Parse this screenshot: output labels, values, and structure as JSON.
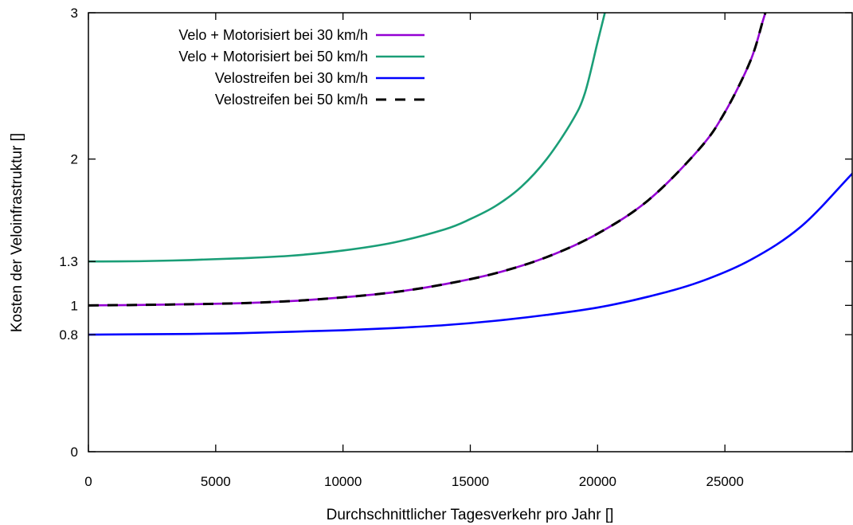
{
  "chart_data": {
    "type": "line",
    "title": "",
    "xlabel": "Durchschnittlicher Tagesverkehr pro Jahr []",
    "ylabel": "Kosten der Veloinfrastruktur []",
    "xlim": [
      0,
      30000
    ],
    "ylim": [
      0,
      3
    ],
    "x_ticks": [
      0,
      5000,
      10000,
      15000,
      20000,
      25000
    ],
    "x_tick_labels": [
      "0",
      "5000",
      "10000",
      "15000",
      "20000",
      "25000"
    ],
    "y_ticks": [
      0,
      0.8,
      1,
      1.3,
      2,
      3
    ],
    "y_tick_labels": [
      "0",
      "0.8",
      "1",
      "1.3",
      "2",
      "3"
    ],
    "grid": false,
    "legend_position": "top-left",
    "series": [
      {
        "name": "Velo + Motorisiert bei 30 km/h",
        "color": "#9400d3",
        "dash": "solid",
        "x": [
          0,
          2000,
          4000,
          6000,
          8000,
          10000,
          12000,
          14000,
          16000,
          18000,
          20000,
          22000,
          24000,
          25000,
          26000,
          26500
        ],
        "y": [
          1.0,
          1.003,
          1.008,
          1.015,
          1.03,
          1.055,
          1.09,
          1.145,
          1.22,
          1.33,
          1.49,
          1.72,
          2.07,
          2.32,
          2.67,
          2.95
        ]
      },
      {
        "name": "Velo + Motorisiert bei 50 km/h",
        "color": "#1a9e77",
        "dash": "solid",
        "x": [
          0,
          2000,
          4000,
          6000,
          8000,
          10000,
          12000,
          14000,
          15000,
          16000,
          17000,
          18000,
          19000,
          19500,
          20000
        ],
        "y": [
          1.3,
          1.302,
          1.31,
          1.322,
          1.34,
          1.375,
          1.43,
          1.52,
          1.59,
          1.68,
          1.81,
          2.0,
          2.26,
          2.45,
          2.8
        ]
      },
      {
        "name": "Velostreifen bei 30 km/h",
        "color": "#0000ff",
        "dash": "solid",
        "x": [
          0,
          4000,
          6000,
          8000,
          10000,
          12000,
          14000,
          16000,
          18000,
          20000,
          22000,
          24000,
          26000,
          28000,
          30000
        ],
        "y": [
          0.8,
          0.805,
          0.81,
          0.82,
          0.83,
          0.845,
          0.865,
          0.895,
          0.935,
          0.985,
          1.06,
          1.16,
          1.31,
          1.54,
          1.9
        ]
      },
      {
        "name": "Velostreifen bei 50 km/h",
        "color": "#000000",
        "dash": "dashed",
        "x": [
          0,
          2000,
          4000,
          6000,
          8000,
          10000,
          12000,
          14000,
          16000,
          18000,
          20000,
          22000,
          24000,
          25000,
          26000,
          26500
        ],
        "y": [
          1.0,
          1.003,
          1.008,
          1.015,
          1.03,
          1.055,
          1.09,
          1.145,
          1.22,
          1.33,
          1.49,
          1.72,
          2.07,
          2.32,
          2.67,
          2.95
        ]
      }
    ]
  }
}
